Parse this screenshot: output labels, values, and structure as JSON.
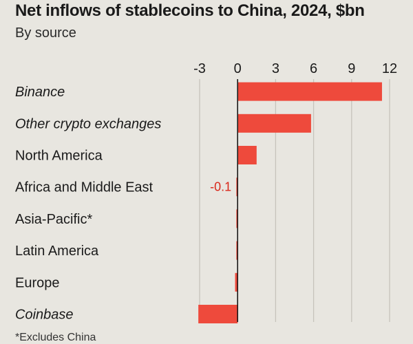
{
  "title": "Net inflows of stablecoins to China, 2024, $bn",
  "subtitle": "By source",
  "footnote": "*Excludes China",
  "colors": {
    "bar": "#ee4a3c",
    "label_negative": "#d9281b",
    "grid": "#c6c3bb",
    "axis": "#1a1a1a",
    "background": "#e8e6e0"
  },
  "chart_data": {
    "type": "bar",
    "orientation": "horizontal",
    "title": "Net inflows of stablecoins to China, 2024, $bn",
    "subtitle": "By source",
    "xlabel": "",
    "ylabel": "",
    "xlim": [
      -3,
      12
    ],
    "ticks": [
      -3,
      0,
      3,
      6,
      9,
      12
    ],
    "tick_labels": [
      "-3",
      "0",
      "3",
      "6",
      "9",
      "12"
    ],
    "grid": true,
    "categories": [
      "Binance",
      "Other crypto exchanges",
      "North America",
      "Africa and Middle East",
      "Asia-Pacific*",
      "Latin America",
      "Europe",
      "Coinbase"
    ],
    "italic_categories": [
      "Binance",
      "Other crypto exchanges",
      "Coinbase"
    ],
    "values": [
      11.4,
      5.8,
      1.5,
      -0.1,
      -0.1,
      -0.1,
      -0.2,
      -3.1
    ],
    "data_labels": [
      {
        "category": "Africa and Middle East",
        "text": "-0.1"
      }
    ]
  }
}
